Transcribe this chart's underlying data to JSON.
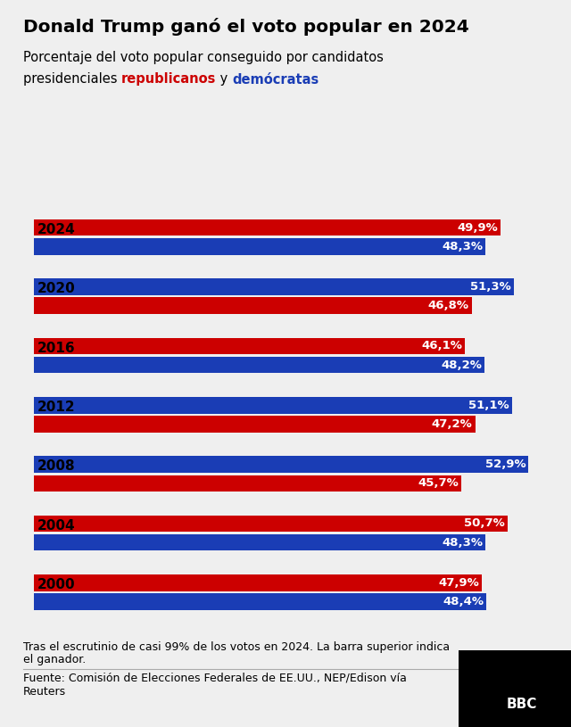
{
  "title": "Donald Trump ganó el voto popular en 2024",
  "sub_line1": "Porcentaje del voto popular conseguido por candidatos",
  "sub_line2_plain1": "presidenciales ",
  "sub_line2_red": "republicanos",
  "sub_line2_plain2": " y ",
  "sub_line2_blue": "demócratas",
  "years": [
    "2024",
    "2020",
    "2016",
    "2012",
    "2008",
    "2004",
    "2000"
  ],
  "top_values": [
    49.9,
    51.3,
    46.1,
    51.1,
    52.9,
    50.7,
    47.9
  ],
  "bottom_values": [
    48.3,
    46.8,
    48.2,
    47.2,
    45.7,
    48.3,
    48.4
  ],
  "top_colors": [
    "#CC0000",
    "#1A3DB5",
    "#CC0000",
    "#1A3DB5",
    "#1A3DB5",
    "#CC0000",
    "#CC0000"
  ],
  "bottom_colors": [
    "#1A3DB5",
    "#CC0000",
    "#1A3DB5",
    "#CC0000",
    "#CC0000",
    "#1A3DB5",
    "#1A3DB5"
  ],
  "top_labels": [
    "49,9%",
    "51,3%",
    "46,1%",
    "51,1%",
    "52,9%",
    "50,7%",
    "47,9%"
  ],
  "bottom_labels": [
    "48,3%",
    "46,8%",
    "48,2%",
    "47,2%",
    "45,7%",
    "48,3%",
    "48,4%"
  ],
  "republican_text_color": "#CC0000",
  "democrat_text_color": "#1A3DB5",
  "background_color": "#EFEFEF",
  "bar_label_color": "#FFFFFF",
  "footnote_line1": "Tras el escrutinio de casi 99% de los votos en 2024. La barra superior indica",
  "footnote_line2": "el ganador.",
  "source_line1": "Fuente: Comisión de Elecciones Federales de EE.UU., NEP/Edison vía",
  "source_line2": "Reuters",
  "xlim_max": 55
}
